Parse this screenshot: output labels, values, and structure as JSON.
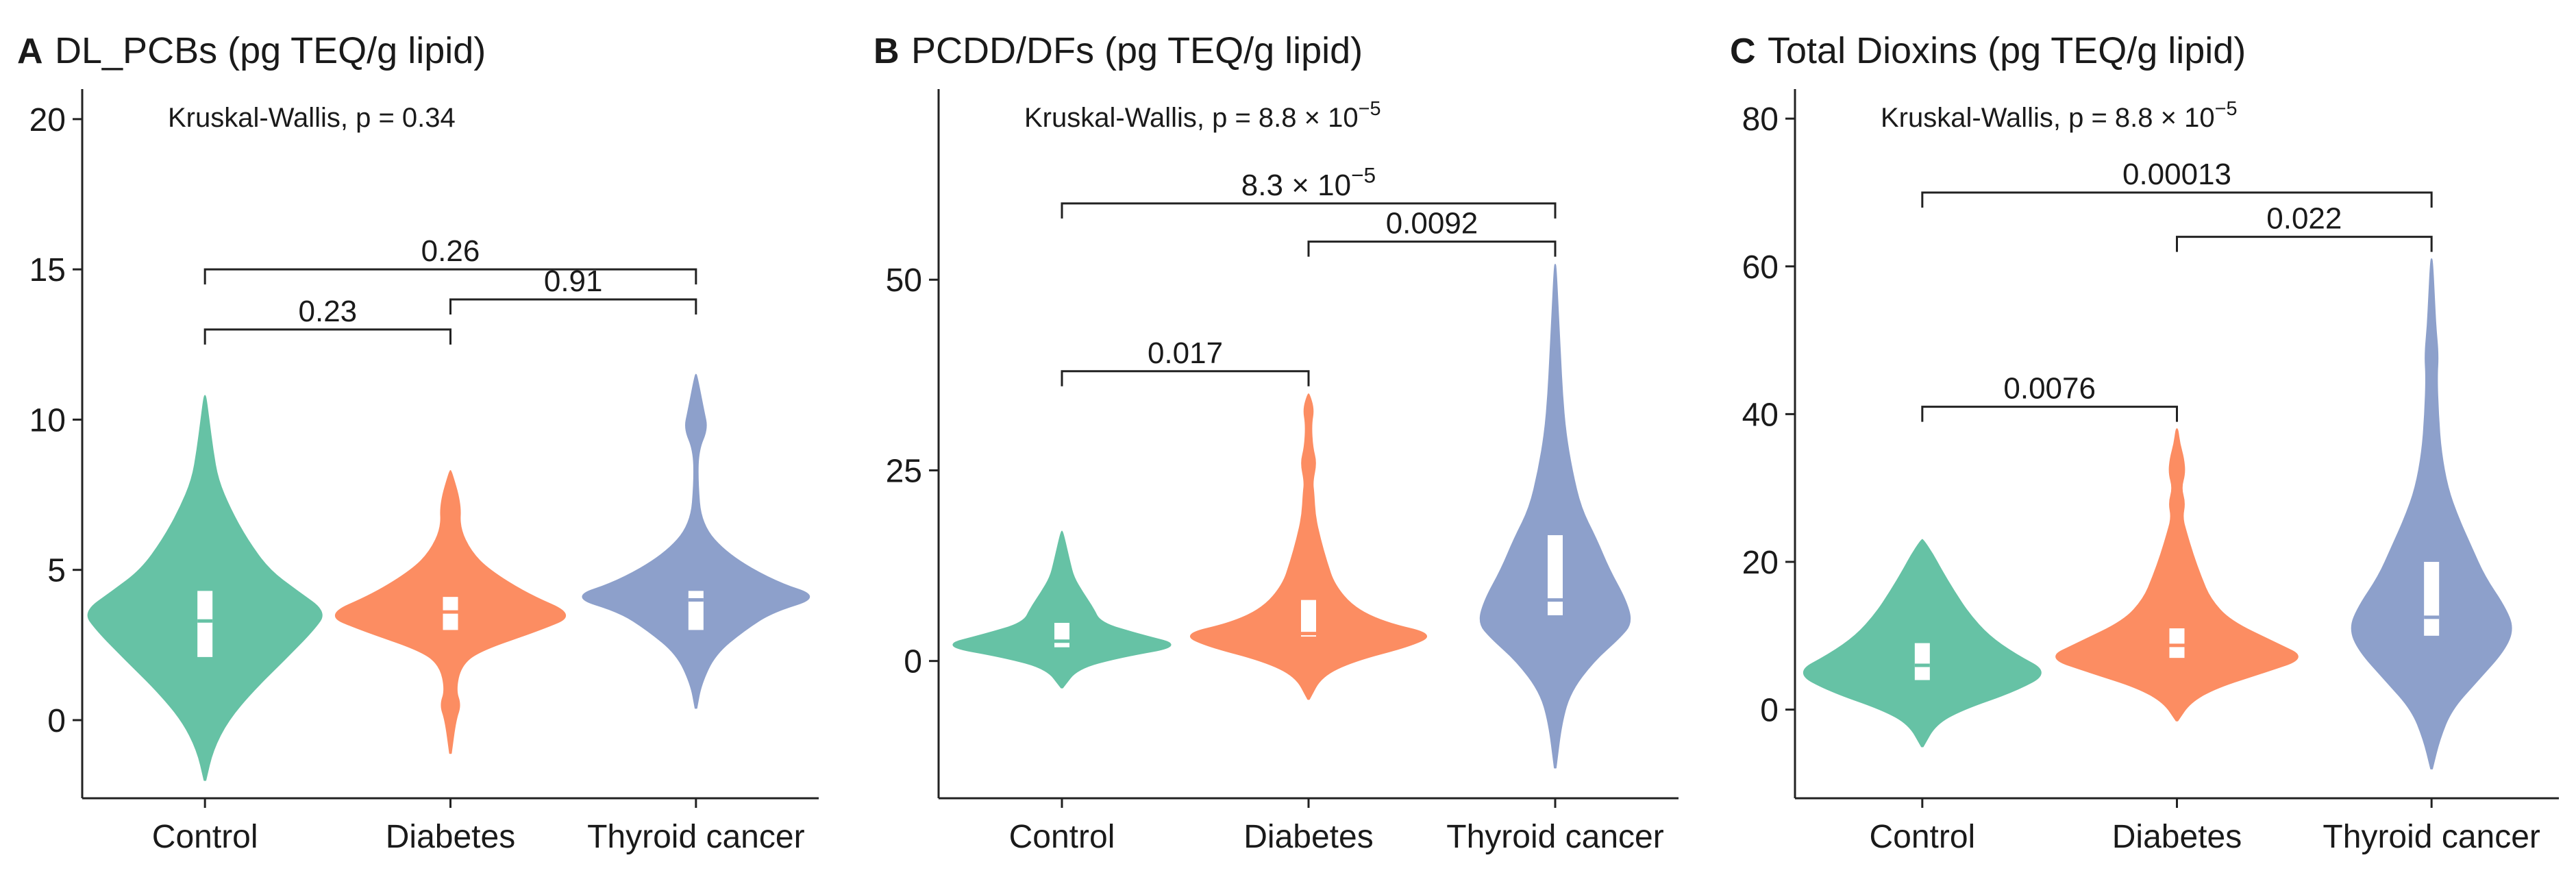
{
  "chart_data": [
    {
      "letter": "A",
      "title": "DL_PCBs (pg TEQ/g lipid)",
      "type": "violin",
      "categories": [
        "Control",
        "Diabetes",
        "Thyroid cancer"
      ],
      "ylim": [
        -2.6,
        21
      ],
      "yticks": [
        0,
        5,
        10,
        15,
        20
      ],
      "test": {
        "text": "Kruskal-Wallis, p = 0.34",
        "base": "Kruskal-Wallis, p = 0.34",
        "exp": ""
      },
      "series": [
        {
          "name": "Control",
          "color": "#66C2A5",
          "profile": [
            [
              -2.0,
              0.005
            ],
            [
              -1.0,
              0.06
            ],
            [
              0,
              0.18
            ],
            [
              1,
              0.38
            ],
            [
              2,
              0.62
            ],
            [
              3,
              0.85
            ],
            [
              3.6,
              0.95
            ],
            [
              4.3,
              0.72
            ],
            [
              5,
              0.5
            ],
            [
              6,
              0.33
            ],
            [
              7,
              0.2
            ],
            [
              8,
              0.1
            ],
            [
              9,
              0.06
            ],
            [
              10,
              0.03
            ],
            [
              10.8,
              0.005
            ]
          ],
          "box": {
            "q1": 2.1,
            "median": 3.3,
            "q3": 4.3
          }
        },
        {
          "name": "Diabetes",
          "color": "#FC8D62",
          "profile": [
            [
              -1.1,
              0.005
            ],
            [
              0,
              0.04
            ],
            [
              0.5,
              0.08
            ],
            [
              1.0,
              0.04
            ],
            [
              1.8,
              0.08
            ],
            [
              2.3,
              0.22
            ],
            [
              3.0,
              0.7
            ],
            [
              3.5,
              0.98
            ],
            [
              4.2,
              0.6
            ],
            [
              5,
              0.3
            ],
            [
              5.6,
              0.16
            ],
            [
              6.4,
              0.07
            ],
            [
              7.2,
              0.08
            ],
            [
              8.3,
              0.005
            ]
          ],
          "box": {
            "q1": 3.0,
            "median": 3.6,
            "q3": 4.1
          }
        },
        {
          "name": "Thyroid cancer",
          "color": "#8DA0CB",
          "profile": [
            [
              0.4,
              0.005
            ],
            [
              1.2,
              0.04
            ],
            [
              2.2,
              0.15
            ],
            [
              3.0,
              0.38
            ],
            [
              3.6,
              0.6
            ],
            [
              4.1,
              0.98
            ],
            [
              4.6,
              0.62
            ],
            [
              5.5,
              0.25
            ],
            [
              6.5,
              0.04
            ],
            [
              8,
              0.012
            ],
            [
              9.0,
              0.02
            ],
            [
              9.7,
              0.09
            ],
            [
              10.3,
              0.06
            ],
            [
              11.5,
              0.005
            ]
          ],
          "box": {
            "q1": 3.0,
            "median": 4.0,
            "q3": 4.3
          }
        }
      ],
      "comparisons": [
        {
          "from": 0,
          "to": 1,
          "y": 13.0,
          "label": "0.23",
          "base": "0.23",
          "exp": ""
        },
        {
          "from": 1,
          "to": 2,
          "y": 14.0,
          "label": "0.91",
          "base": "0.91",
          "exp": ""
        },
        {
          "from": 0,
          "to": 2,
          "y": 15.0,
          "label": "0.26",
          "base": "0.26",
          "exp": ""
        }
      ]
    },
    {
      "letter": "B",
      "title": "PCDD/DFs (pg TEQ/g lipid)",
      "type": "violin",
      "categories": [
        "Control",
        "Diabetes",
        "Thyroid cancer"
      ],
      "ylim": [
        -18,
        75
      ],
      "yticks": [
        0,
        25,
        50
      ],
      "test": {
        "text": "Kruskal-Wallis, p = 8.8 × 10⁻⁵",
        "base": "Kruskal-Wallis, p = 8.8 × 10",
        "exp": "−5"
      },
      "series": [
        {
          "name": "Control",
          "color": "#66C2A5",
          "profile": [
            [
              -3.5,
              0.005
            ],
            [
              -1,
              0.12
            ],
            [
              0.5,
              0.45
            ],
            [
              2,
              0.95
            ],
            [
              3.5,
              0.6
            ],
            [
              5,
              0.3
            ],
            [
              7,
              0.24
            ],
            [
              9,
              0.16
            ],
            [
              11,
              0.09
            ],
            [
              13,
              0.06
            ],
            [
              17,
              0.005
            ]
          ],
          "box": {
            "q1": 1.8,
            "median": 2.6,
            "q3": 5.0
          }
        },
        {
          "name": "Diabetes",
          "color": "#FC8D62",
          "profile": [
            [
              -5,
              0.005
            ],
            [
              -2,
              0.1
            ],
            [
              0,
              0.35
            ],
            [
              2,
              0.8
            ],
            [
              3.5,
              0.98
            ],
            [
              5,
              0.6
            ],
            [
              7,
              0.35
            ],
            [
              10,
              0.2
            ],
            [
              13,
              0.14
            ],
            [
              16,
              0.09
            ],
            [
              19,
              0.05
            ],
            [
              22,
              0.04
            ],
            [
              23.5,
              0.03
            ],
            [
              26,
              0.06
            ],
            [
              28,
              0.03
            ],
            [
              31,
              0.02
            ],
            [
              33,
              0.04
            ],
            [
              35,
              0.005
            ]
          ],
          "box": {
            "q1": 3.2,
            "median": 3.6,
            "q3": 8.0
          }
        },
        {
          "name": "Thyroid cancer",
          "color": "#8DA0CB",
          "profile": [
            [
              -14,
              0.005
            ],
            [
              -8,
              0.05
            ],
            [
              -4,
              0.12
            ],
            [
              0,
              0.3
            ],
            [
              3,
              0.5
            ],
            [
              5,
              0.6
            ],
            [
              8,
              0.55
            ],
            [
              12,
              0.42
            ],
            [
              16,
              0.32
            ],
            [
              20,
              0.2
            ],
            [
              25,
              0.13
            ],
            [
              30,
              0.08
            ],
            [
              35,
              0.055
            ],
            [
              40,
              0.04
            ],
            [
              45,
              0.025
            ],
            [
              52,
              0.005
            ]
          ],
          "box": {
            "q1": 6.0,
            "median": 8.0,
            "q3": 16.5
          }
        }
      ],
      "comparisons": [
        {
          "from": 0,
          "to": 1,
          "y": 38,
          "label": "0.017",
          "base": "0.017",
          "exp": ""
        },
        {
          "from": 1,
          "to": 2,
          "y": 55,
          "label": "0.0092",
          "base": "0.0092",
          "exp": ""
        },
        {
          "from": 0,
          "to": 2,
          "y": 60,
          "label": "8.3 × 10⁻⁵",
          "base": "8.3 × 10",
          "exp": "−5"
        }
      ]
    },
    {
      "letter": "C",
      "title": "Total Dioxins (pg TEQ/g lipid)",
      "type": "violin",
      "categories": [
        "Control",
        "Diabetes",
        "Thyroid cancer"
      ],
      "ylim": [
        -12,
        84
      ],
      "yticks": [
        0,
        20,
        40,
        60,
        80
      ],
      "test": {
        "text": "Kruskal-Wallis, p = 8.8 × 10⁻⁵",
        "base": "Kruskal-Wallis, p = 8.8 × 10",
        "exp": "−5"
      },
      "series": [
        {
          "name": "Control",
          "color": "#66C2A5",
          "profile": [
            [
              -5,
              0.005
            ],
            [
              -2,
              0.1
            ],
            [
              0,
              0.3
            ],
            [
              2.5,
              0.7
            ],
            [
              5,
              0.96
            ],
            [
              7.5,
              0.7
            ],
            [
              10,
              0.5
            ],
            [
              13,
              0.35
            ],
            [
              16,
              0.24
            ],
            [
              19,
              0.14
            ],
            [
              21,
              0.08
            ],
            [
              23,
              0.005
            ]
          ],
          "box": {
            "q1": 4.0,
            "median": 6.0,
            "q3": 9.0
          }
        },
        {
          "name": "Diabetes",
          "color": "#FC8D62",
          "profile": [
            [
              -1.5,
              0.005
            ],
            [
              1,
              0.1
            ],
            [
              3,
              0.3
            ],
            [
              5,
              0.65
            ],
            [
              7,
              0.98
            ],
            [
              9,
              0.75
            ],
            [
              12,
              0.4
            ],
            [
              15,
              0.25
            ],
            [
              18,
              0.18
            ],
            [
              21,
              0.12
            ],
            [
              24,
              0.07
            ],
            [
              26,
              0.04
            ],
            [
              28,
              0.06
            ],
            [
              30,
              0.03
            ],
            [
              32,
              0.06
            ],
            [
              34,
              0.05
            ],
            [
              36,
              0.02
            ],
            [
              38,
              0.005
            ]
          ],
          "box": {
            "q1": 7.0,
            "median": 8.7,
            "q3": 11.0
          }
        },
        {
          "name": "Thyroid cancer",
          "color": "#8DA0CB",
          "profile": [
            [
              -8,
              0.005
            ],
            [
              -4,
              0.06
            ],
            [
              0,
              0.15
            ],
            [
              4,
              0.35
            ],
            [
              8,
              0.55
            ],
            [
              11,
              0.62
            ],
            [
              14,
              0.55
            ],
            [
              18,
              0.4
            ],
            [
              22,
              0.3
            ],
            [
              26,
              0.2
            ],
            [
              30,
              0.12
            ],
            [
              35,
              0.07
            ],
            [
              40,
              0.05
            ],
            [
              45,
              0.04
            ],
            [
              48,
              0.05
            ],
            [
              52,
              0.03
            ],
            [
              56,
              0.02
            ],
            [
              61,
              0.005
            ]
          ],
          "box": {
            "q1": 10.0,
            "median": 12.5,
            "q3": 20.0
          }
        }
      ],
      "comparisons": [
        {
          "from": 0,
          "to": 1,
          "y": 41,
          "label": "0.0076",
          "base": "0.0076",
          "exp": ""
        },
        {
          "from": 1,
          "to": 2,
          "y": 64,
          "label": "0.022",
          "base": "0.022",
          "exp": ""
        },
        {
          "from": 0,
          "to": 2,
          "y": 70,
          "label": "0.00013",
          "base": "0.00013",
          "exp": ""
        }
      ]
    }
  ]
}
